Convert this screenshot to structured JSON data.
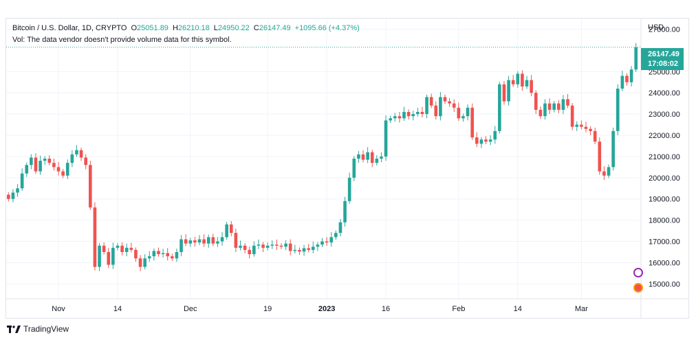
{
  "header": {
    "symbol": "Bitcoin / U.S. Dollar, 1D, CRYPTO",
    "open_label": "O",
    "open": "25051.89",
    "high_label": "H",
    "high": "26210.18",
    "low_label": "L",
    "low": "24950.22",
    "close_label": "C",
    "close": "26147.49",
    "change": "+1095.66 (+4.37%)",
    "volume_note": "Vol: The data vendor doesn't provide volume data for this symbol."
  },
  "axis": {
    "currency": "USD"
  },
  "price_badge": {
    "price": "26147.49",
    "countdown": "17:08:02"
  },
  "branding": {
    "name": "TradingView"
  },
  "colors": {
    "up": "#26a69a",
    "down": "#ef5350",
    "grid": "#f0f3fa",
    "text": "#131722"
  },
  "chart_data": {
    "type": "candlestick",
    "y_ticks": [
      "15000.00",
      "16000.00",
      "17000.00",
      "18000.00",
      "19000.00",
      "20000.00",
      "21000.00",
      "22000.00",
      "23000.00",
      "24000.00",
      "25000.00",
      "27000.00"
    ],
    "x_ticks": [
      "Nov",
      "14",
      "Dec",
      "19",
      "2023",
      "16",
      "Feb",
      "14",
      "Mar"
    ],
    "x_tick_bold": "2023",
    "ylim": [
      14300,
      27500
    ],
    "last_price": 26147.49,
    "candles": [
      [
        19200,
        19000
      ],
      [
        19000,
        19300
      ],
      [
        19300,
        19500
      ],
      [
        19500,
        20200
      ],
      [
        20200,
        20600
      ],
      [
        20600,
        20950
      ],
      [
        20950,
        20300
      ],
      [
        20300,
        20800
      ],
      [
        20800,
        20900
      ],
      [
        20900,
        20700
      ],
      [
        20700,
        20500
      ],
      [
        20500,
        20300
      ],
      [
        20300,
        20100
      ],
      [
        20100,
        20700
      ],
      [
        20700,
        21100
      ],
      [
        21100,
        21300
      ],
      [
        21300,
        20950
      ],
      [
        20950,
        20600
      ],
      [
        20600,
        18600
      ],
      [
        18600,
        15800
      ],
      [
        15800,
        16800
      ],
      [
        16800,
        16500
      ],
      [
        16500,
        15900
      ],
      [
        15900,
        16700
      ],
      [
        16700,
        16800
      ],
      [
        16800,
        16500
      ],
      [
        16500,
        16700
      ],
      [
        16700,
        16600
      ],
      [
        16600,
        16200
      ],
      [
        16200,
        15800
      ],
      [
        15800,
        16200
      ],
      [
        16200,
        16300
      ],
      [
        16300,
        16550
      ],
      [
        16550,
        16400
      ],
      [
        16400,
        16450
      ],
      [
        16450,
        16300
      ],
      [
        16300,
        16200
      ],
      [
        16200,
        16500
      ],
      [
        16500,
        17100
      ],
      [
        17100,
        16900
      ],
      [
        16900,
        17050
      ],
      [
        17050,
        16950
      ],
      [
        16950,
        17100
      ],
      [
        17100,
        16900
      ],
      [
        16900,
        17200
      ],
      [
        17200,
        16900
      ],
      [
        16900,
        17000
      ],
      [
        17000,
        17200
      ],
      [
        17200,
        17800
      ],
      [
        17800,
        17400
      ],
      [
        17400,
        16700
      ],
      [
        16700,
        16800
      ],
      [
        16800,
        16600
      ],
      [
        16600,
        16400
      ],
      [
        16400,
        16800
      ],
      [
        16800,
        16850
      ],
      [
        16850,
        16700
      ],
      [
        16700,
        16800
      ],
      [
        16800,
        16850
      ],
      [
        16850,
        16800
      ],
      [
        16800,
        16750
      ],
      [
        16750,
        16900
      ],
      [
        16900,
        16550
      ],
      [
        16550,
        16600
      ],
      [
        16600,
        16520
      ],
      [
        16520,
        16680
      ],
      [
        16680,
        16600
      ],
      [
        16600,
        16750
      ],
      [
        16750,
        16850
      ],
      [
        16850,
        17000
      ],
      [
        17000,
        16950
      ],
      [
        16950,
        17200
      ],
      [
        17200,
        17400
      ],
      [
        17400,
        17900
      ],
      [
        17900,
        18900
      ],
      [
        18900,
        20000
      ],
      [
        20000,
        20900
      ],
      [
        20900,
        21100
      ],
      [
        21100,
        20850
      ],
      [
        20850,
        21200
      ],
      [
        21200,
        20700
      ],
      [
        20700,
        20900
      ],
      [
        20900,
        21000
      ],
      [
        21000,
        22700
      ],
      [
        22700,
        22800
      ],
      [
        22800,
        22900
      ],
      [
        22900,
        22800
      ],
      [
        22800,
        23100
      ],
      [
        23100,
        22900
      ],
      [
        22900,
        23000
      ],
      [
        23000,
        23100
      ],
      [
        23100,
        23000
      ],
      [
        23000,
        23800
      ],
      [
        23800,
        23400
      ],
      [
        23400,
        22900
      ],
      [
        22900,
        23800
      ],
      [
        23800,
        23600
      ],
      [
        23600,
        23500
      ],
      [
        23500,
        23300
      ],
      [
        23300,
        22800
      ],
      [
        22800,
        22900
      ],
      [
        22900,
        23300
      ],
      [
        23300,
        21900
      ],
      [
        21900,
        21600
      ],
      [
        21600,
        21800
      ],
      [
        21800,
        21700
      ],
      [
        21700,
        21800
      ],
      [
        21800,
        22200
      ],
      [
        22200,
        24400
      ],
      [
        24400,
        23600
      ],
      [
        23600,
        24600
      ],
      [
        24600,
        24400
      ],
      [
        24400,
        24900
      ],
      [
        24900,
        24300
      ],
      [
        24300,
        24600
      ],
      [
        24600,
        24000
      ],
      [
        24000,
        23200
      ],
      [
        23200,
        22900
      ],
      [
        22900,
        23500
      ],
      [
        23500,
        23200
      ],
      [
        23200,
        23500
      ],
      [
        23500,
        23200
      ],
      [
        23200,
        23700
      ],
      [
        23700,
        23400
      ],
      [
        23400,
        22400
      ],
      [
        22400,
        22500
      ],
      [
        22500,
        22400
      ],
      [
        22400,
        22300
      ],
      [
        22300,
        22200
      ],
      [
        22200,
        21700
      ],
      [
        21700,
        20300
      ],
      [
        20300,
        20100
      ],
      [
        20100,
        20500
      ],
      [
        20500,
        22200
      ],
      [
        22200,
        24200
      ],
      [
        24200,
        24800
      ],
      [
        24800,
        24500
      ],
      [
        24500,
        25100
      ],
      [
        25100,
        26147
      ]
    ]
  }
}
